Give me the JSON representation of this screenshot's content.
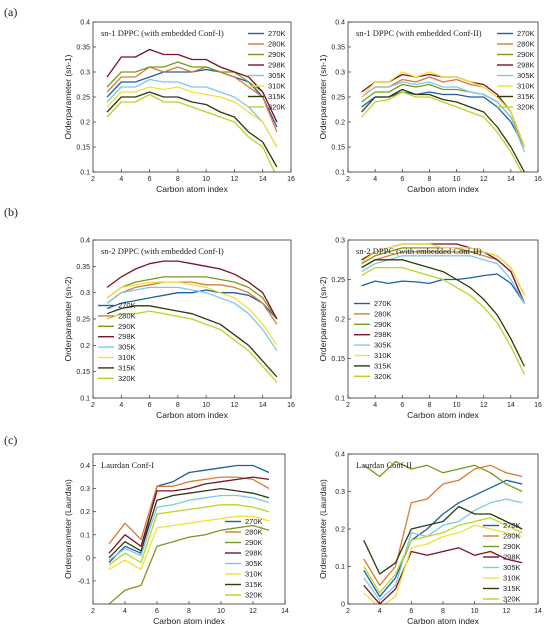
{
  "figure": {
    "colors": [
      "#1f5fa0",
      "#d97a34",
      "#7a9a1e",
      "#7a1228",
      "#7fc7e8",
      "#f2df3a",
      "#2c3a12",
      "#b5d626"
    ],
    "panel_labels": [
      "(a)",
      "(b)",
      "(c)"
    ]
  },
  "chart_data": [
    {
      "type": "line",
      "title": "sn-1 DPPC (with embedded Conf-I)",
      "xlabel": "Carbon atom index",
      "ylabel": "Orderparameter (sn-1)",
      "xlim": [
        2,
        16
      ],
      "ylim": [
        0.1,
        0.4
      ],
      "xticks": [
        2,
        4,
        6,
        8,
        10,
        12,
        14,
        16
      ],
      "yticks": [
        0.1,
        0.15,
        0.2,
        0.25,
        0.3,
        0.35,
        0.4
      ],
      "legend": "top-right",
      "x": [
        3,
        4,
        5,
        6,
        7,
        8,
        9,
        10,
        11,
        12,
        13,
        14,
        15
      ],
      "series": [
        {
          "name": "270K",
          "values": [
            0.25,
            0.28,
            0.28,
            0.29,
            0.3,
            0.3,
            0.3,
            0.305,
            0.3,
            0.29,
            0.28,
            0.25,
            0.19
          ]
        },
        {
          "name": "280K",
          "values": [
            0.26,
            0.29,
            0.29,
            0.31,
            0.3,
            0.31,
            0.3,
            0.31,
            0.3,
            0.29,
            0.27,
            0.25,
            0.18
          ]
        },
        {
          "name": "290K",
          "values": [
            0.27,
            0.3,
            0.3,
            0.31,
            0.31,
            0.32,
            0.31,
            0.31,
            0.3,
            0.3,
            0.28,
            0.26,
            0.2
          ]
        },
        {
          "name": "298K",
          "values": [
            0.29,
            0.33,
            0.33,
            0.345,
            0.335,
            0.335,
            0.325,
            0.325,
            0.31,
            0.3,
            0.29,
            0.26,
            0.2
          ]
        },
        {
          "name": "305K",
          "values": [
            0.24,
            0.27,
            0.27,
            0.285,
            0.28,
            0.28,
            0.27,
            0.27,
            0.26,
            0.25,
            0.23,
            0.2,
            0.15
          ]
        },
        {
          "name": "310K",
          "values": [
            0.23,
            0.26,
            0.26,
            0.27,
            0.265,
            0.27,
            0.26,
            0.255,
            0.25,
            0.24,
            0.22,
            0.2,
            0.15
          ]
        },
        {
          "name": "315K",
          "values": [
            0.22,
            0.25,
            0.25,
            0.26,
            0.25,
            0.25,
            0.24,
            0.235,
            0.22,
            0.21,
            0.18,
            0.16,
            0.11
          ]
        },
        {
          "name": "320K",
          "values": [
            0.21,
            0.24,
            0.24,
            0.255,
            0.24,
            0.24,
            0.23,
            0.22,
            0.21,
            0.2,
            0.17,
            0.15,
            0.09
          ]
        }
      ]
    },
    {
      "type": "line",
      "title": "sn-1 DPPC (with embedded Conf-II)",
      "xlabel": "Carbon atom index",
      "ylabel": "Orderparameter (sn-1)",
      "xlim": [
        2,
        16
      ],
      "ylim": [
        0.1,
        0.4
      ],
      "xticks": [
        2,
        4,
        6,
        8,
        10,
        12,
        14,
        16
      ],
      "yticks": [
        0.1,
        0.15,
        0.2,
        0.25,
        0.3,
        0.35,
        0.4
      ],
      "legend": "top-right",
      "x": [
        3,
        4,
        5,
        6,
        7,
        8,
        9,
        10,
        11,
        12,
        13,
        14,
        15
      ],
      "series": [
        {
          "name": "270K",
          "values": [
            0.23,
            0.25,
            0.25,
            0.26,
            0.255,
            0.26,
            0.255,
            0.255,
            0.25,
            0.25,
            0.23,
            0.2,
            0.15
          ]
        },
        {
          "name": "280K",
          "values": [
            0.25,
            0.27,
            0.27,
            0.285,
            0.28,
            0.29,
            0.28,
            0.285,
            0.275,
            0.27,
            0.25,
            0.22,
            0.15
          ]
        },
        {
          "name": "290K",
          "values": [
            0.24,
            0.26,
            0.26,
            0.275,
            0.27,
            0.275,
            0.265,
            0.265,
            0.26,
            0.255,
            0.24,
            0.21,
            0.15
          ]
        },
        {
          "name": "298K",
          "values": [
            0.26,
            0.28,
            0.28,
            0.295,
            0.29,
            0.295,
            0.29,
            0.29,
            0.28,
            0.275,
            0.255,
            0.22,
            0.15
          ]
        },
        {
          "name": "305K",
          "values": [
            0.25,
            0.27,
            0.27,
            0.28,
            0.275,
            0.28,
            0.27,
            0.27,
            0.26,
            0.255,
            0.24,
            0.21,
            0.14
          ]
        },
        {
          "name": "310K",
          "values": [
            0.25,
            0.28,
            0.28,
            0.3,
            0.29,
            0.3,
            0.29,
            0.29,
            0.28,
            0.27,
            0.25,
            0.22,
            0.15
          ]
        },
        {
          "name": "315K",
          "values": [
            0.22,
            0.25,
            0.25,
            0.265,
            0.255,
            0.255,
            0.245,
            0.24,
            0.23,
            0.22,
            0.19,
            0.15,
            0.1
          ]
        },
        {
          "name": "320K",
          "values": [
            0.21,
            0.24,
            0.245,
            0.26,
            0.25,
            0.25,
            0.24,
            0.23,
            0.22,
            0.21,
            0.18,
            0.14,
            0.09
          ]
        }
      ]
    },
    {
      "type": "line",
      "title": "sn-2 DPPC (with embedded Conf-I)",
      "xlabel": "Carbon atom index",
      "ylabel": "Orderparameter (sn-2)",
      "xlim": [
        2,
        16
      ],
      "ylim": [
        0.1,
        0.4
      ],
      "xticks": [
        2,
        4,
        6,
        8,
        10,
        12,
        14,
        16
      ],
      "yticks": [
        0.1,
        0.15,
        0.2,
        0.25,
        0.3,
        0.35,
        0.4
      ],
      "legend": "bottom-left",
      "x": [
        3,
        4,
        5,
        6,
        7,
        8,
        9,
        10,
        11,
        12,
        13,
        14,
        15
      ],
      "series": [
        {
          "name": "270K",
          "values": [
            0.27,
            0.28,
            0.285,
            0.29,
            0.295,
            0.3,
            0.3,
            0.305,
            0.3,
            0.3,
            0.295,
            0.28,
            0.25
          ]
        },
        {
          "name": "280K",
          "values": [
            0.28,
            0.3,
            0.31,
            0.315,
            0.32,
            0.32,
            0.32,
            0.315,
            0.315,
            0.31,
            0.3,
            0.28,
            0.24
          ]
        },
        {
          "name": "290K",
          "values": [
            0.29,
            0.31,
            0.32,
            0.325,
            0.33,
            0.33,
            0.33,
            0.33,
            0.325,
            0.32,
            0.31,
            0.29,
            0.25
          ]
        },
        {
          "name": "298K",
          "values": [
            0.31,
            0.33,
            0.345,
            0.355,
            0.36,
            0.36,
            0.355,
            0.35,
            0.345,
            0.335,
            0.32,
            0.3,
            0.25
          ]
        },
        {
          "name": "305K",
          "values": [
            0.28,
            0.3,
            0.305,
            0.31,
            0.31,
            0.31,
            0.305,
            0.3,
            0.29,
            0.28,
            0.26,
            0.23,
            0.19
          ]
        },
        {
          "name": "310K",
          "values": [
            0.29,
            0.31,
            0.315,
            0.32,
            0.32,
            0.32,
            0.315,
            0.31,
            0.3,
            0.29,
            0.27,
            0.24,
            0.2
          ]
        },
        {
          "name": "315K",
          "values": [
            0.26,
            0.27,
            0.275,
            0.275,
            0.27,
            0.265,
            0.26,
            0.25,
            0.24,
            0.22,
            0.2,
            0.17,
            0.14
          ]
        },
        {
          "name": "320K",
          "values": [
            0.25,
            0.26,
            0.26,
            0.265,
            0.26,
            0.255,
            0.25,
            0.24,
            0.23,
            0.21,
            0.19,
            0.16,
            0.13
          ]
        }
      ]
    },
    {
      "type": "line",
      "title": "sn-2 DPPC (with embedded Conf-II)",
      "xlabel": "Carbon atom index",
      "ylabel": "Orderparameter (sn-2)",
      "xlim": [
        2,
        16
      ],
      "ylim": [
        0.1,
        0.3
      ],
      "xticks": [
        2,
        4,
        6,
        8,
        10,
        12,
        14,
        16
      ],
      "yticks": [
        0.1,
        0.15,
        0.2,
        0.25,
        0.3
      ],
      "legend": "bottom-left",
      "x": [
        3,
        4,
        5,
        6,
        7,
        8,
        9,
        10,
        11,
        12,
        13,
        14,
        15
      ],
      "series": [
        {
          "name": "270K",
          "values": [
            0.242,
            0.248,
            0.245,
            0.248,
            0.247,
            0.245,
            0.25,
            0.25,
            0.252,
            0.255,
            0.257,
            0.245,
            0.22
          ]
        },
        {
          "name": "280K",
          "values": [
            0.265,
            0.275,
            0.28,
            0.285,
            0.285,
            0.285,
            0.285,
            0.285,
            0.285,
            0.28,
            0.275,
            0.26,
            0.22
          ]
        },
        {
          "name": "290K",
          "values": [
            0.27,
            0.28,
            0.285,
            0.29,
            0.29,
            0.29,
            0.29,
            0.29,
            0.285,
            0.285,
            0.28,
            0.265,
            0.23
          ]
        },
        {
          "name": "298K",
          "values": [
            0.275,
            0.285,
            0.29,
            0.295,
            0.295,
            0.295,
            0.295,
            0.295,
            0.29,
            0.285,
            0.275,
            0.26,
            0.22
          ]
        },
        {
          "name": "305K",
          "values": [
            0.26,
            0.27,
            0.275,
            0.28,
            0.28,
            0.28,
            0.28,
            0.28,
            0.28,
            0.275,
            0.27,
            0.25,
            0.22
          ]
        },
        {
          "name": "310K",
          "values": [
            0.272,
            0.285,
            0.29,
            0.295,
            0.295,
            0.295,
            0.29,
            0.29,
            0.29,
            0.285,
            0.28,
            0.265,
            0.23
          ]
        },
        {
          "name": "315K",
          "values": [
            0.265,
            0.275,
            0.275,
            0.275,
            0.27,
            0.265,
            0.26,
            0.25,
            0.24,
            0.225,
            0.205,
            0.175,
            0.14
          ]
        },
        {
          "name": "320K",
          "values": [
            0.255,
            0.265,
            0.265,
            0.265,
            0.26,
            0.255,
            0.25,
            0.24,
            0.23,
            0.215,
            0.195,
            0.165,
            0.13
          ]
        }
      ]
    },
    {
      "type": "line",
      "title": "Laurdan Conf-I",
      "xlabel": "Carbon atom index",
      "ylabel": "Orderparameter (Laurdan)",
      "xlim": [
        2,
        14
      ],
      "ylim": [
        -0.2,
        0.45
      ],
      "xticks": [
        2,
        4,
        6,
        8,
        10,
        12,
        14
      ],
      "yticks": [
        -0.1,
        0,
        0.1,
        0.2,
        0.3,
        0.4
      ],
      "legend": "bottom-right",
      "x": [
        3,
        4,
        5,
        6,
        7,
        8,
        9,
        10,
        11,
        12,
        13
      ],
      "series": [
        {
          "name": "270K",
          "values": [
            -0.02,
            0.05,
            0.02,
            0.31,
            0.33,
            0.37,
            0.38,
            0.39,
            0.4,
            0.4,
            0.37
          ]
        },
        {
          "name": "280K",
          "values": [
            0.06,
            0.15,
            0.08,
            0.31,
            0.31,
            0.33,
            0.34,
            0.35,
            0.35,
            0.34,
            0.3
          ]
        },
        {
          "name": "290K",
          "values": [
            -0.2,
            -0.14,
            -0.12,
            0.05,
            0.07,
            0.09,
            0.1,
            0.12,
            0.13,
            0.14,
            0.12
          ]
        },
        {
          "name": "298K",
          "values": [
            0.02,
            0.1,
            0.05,
            0.29,
            0.29,
            0.3,
            0.32,
            0.33,
            0.34,
            0.35,
            0.34
          ]
        },
        {
          "name": "305K",
          "values": [
            -0.01,
            0.04,
            0.01,
            0.22,
            0.23,
            0.25,
            0.26,
            0.27,
            0.27,
            0.26,
            0.24
          ]
        },
        {
          "name": "310K",
          "values": [
            -0.05,
            -0.01,
            -0.05,
            0.13,
            0.14,
            0.15,
            0.16,
            0.17,
            0.18,
            0.18,
            0.16
          ]
        },
        {
          "name": "315K",
          "values": [
            0.0,
            0.07,
            0.03,
            0.25,
            0.27,
            0.28,
            0.29,
            0.3,
            0.29,
            0.28,
            0.26
          ]
        },
        {
          "name": "320K",
          "values": [
            -0.03,
            0.02,
            -0.02,
            0.19,
            0.2,
            0.21,
            0.22,
            0.23,
            0.23,
            0.22,
            0.2
          ]
        }
      ]
    },
    {
      "type": "line",
      "title": "Laurdan Conf-II",
      "xlabel": "Carbon atom index",
      "ylabel": "Orderparameter (Laurdan)",
      "xlim": [
        2,
        14
      ],
      "ylim": [
        0.0,
        0.4
      ],
      "xticks": [
        2,
        4,
        6,
        8,
        10,
        12,
        14
      ],
      "yticks": [
        0,
        0.1,
        0.2,
        0.3,
        0.4
      ],
      "legend": "bottom-right",
      "x": [
        3,
        4,
        5,
        6,
        7,
        8,
        9,
        10,
        11,
        12,
        13
      ],
      "series": [
        {
          "name": "270K",
          "values": [
            0.09,
            0.02,
            0.07,
            0.17,
            0.2,
            0.24,
            0.27,
            0.29,
            0.31,
            0.33,
            0.32
          ]
        },
        {
          "name": "280K",
          "values": [
            0.12,
            0.05,
            0.1,
            0.27,
            0.28,
            0.32,
            0.33,
            0.36,
            0.37,
            0.35,
            0.34
          ]
        },
        {
          "name": "290K",
          "values": [
            0.37,
            0.34,
            0.38,
            0.36,
            0.37,
            0.35,
            0.36,
            0.37,
            0.35,
            0.32,
            0.3
          ]
        },
        {
          "name": "298K",
          "values": [
            0.05,
            0.0,
            0.04,
            0.14,
            0.13,
            0.14,
            0.15,
            0.13,
            0.14,
            0.12,
            0.11
          ]
        },
        {
          "name": "305K",
          "values": [
            0.07,
            0.01,
            0.05,
            0.19,
            0.18,
            0.21,
            0.22,
            0.25,
            0.27,
            0.28,
            0.27
          ]
        },
        {
          "name": "310K",
          "values": [
            0.03,
            -0.01,
            0.02,
            0.15,
            0.16,
            0.18,
            0.19,
            0.21,
            0.2,
            0.19,
            0.18
          ]
        },
        {
          "name": "315K",
          "values": [
            0.17,
            0.08,
            0.11,
            0.2,
            0.21,
            0.22,
            0.26,
            0.24,
            0.24,
            0.22,
            0.2
          ]
        },
        {
          "name": "320K",
          "values": [
            0.1,
            0.03,
            0.08,
            0.17,
            0.18,
            0.19,
            0.21,
            0.22,
            0.23,
            0.21,
            0.19
          ]
        }
      ]
    }
  ]
}
